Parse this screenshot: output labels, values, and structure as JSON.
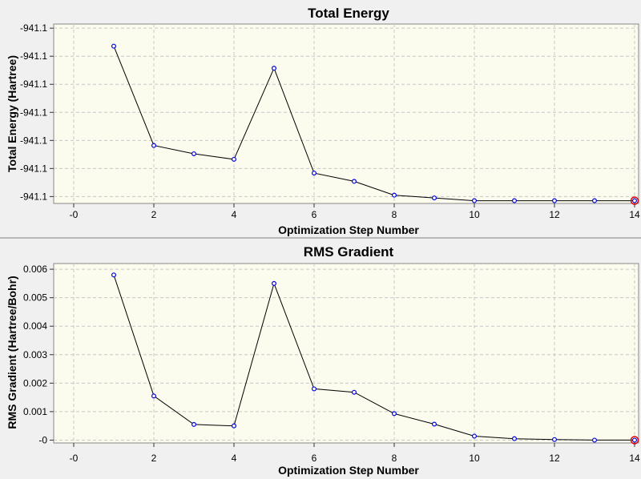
{
  "chart_data": [
    {
      "type": "line",
      "title": "Total Energy",
      "xlabel": "Optimization Step Number",
      "ylabel": "Total Energy (Hartree)",
      "x_ticks": [
        "-0",
        "2",
        "4",
        "6",
        "8",
        "10",
        "12",
        "14"
      ],
      "y_ticks": [
        "-941.1",
        "-941.1",
        "-941.1",
        "-941.1",
        "-941.1",
        "-941.1",
        "-941.1"
      ],
      "xlim": [
        -0.5,
        14.1
      ],
      "ylim": [
        -941.1255,
        -941.119
      ],
      "grid": true,
      "x": [
        1,
        2,
        3,
        4,
        5,
        6,
        7,
        8,
        9,
        10,
        11,
        12,
        13,
        14
      ],
      "values": [
        -941.1198,
        -941.1234,
        -941.1237,
        -941.1239,
        -941.1206,
        -941.1244,
        -941.1247,
        -941.1252,
        -941.1253,
        -941.1254,
        -941.1254,
        -941.1254,
        -941.1254,
        -941.1254
      ],
      "highlight_last": true
    },
    {
      "type": "line",
      "title": "RMS Gradient",
      "xlabel": "Optimization Step Number",
      "ylabel": "RMS Gradient (Hartree/Bohr)",
      "x_ticks": [
        "-0",
        "2",
        "4",
        "6",
        "8",
        "10",
        "12",
        "14"
      ],
      "y_ticks": [
        "-0",
        "0.001",
        "0.002",
        "0.003",
        "0.004",
        "0.005",
        "0.006"
      ],
      "xlim": [
        -0.5,
        14.1
      ],
      "ylim": [
        -0.0001,
        0.0062
      ],
      "grid": true,
      "x": [
        1,
        2,
        3,
        4,
        5,
        6,
        7,
        8,
        9,
        10,
        11,
        12,
        13,
        14
      ],
      "values": [
        0.0058,
        0.00155,
        0.00055,
        0.0005,
        0.0055,
        0.0018,
        0.00168,
        0.00093,
        0.00056,
        0.00014,
        5e-05,
        2e-05,
        0.0,
        0.0
      ],
      "highlight_last": true
    }
  ],
  "colors": {
    "plot_bg": "#fbfbee",
    "grid": "#c8c8c8",
    "line": "#000000",
    "marker": "#0000dd",
    "highlight": "#dd0000",
    "window_bg": "#f0f0f0"
  }
}
